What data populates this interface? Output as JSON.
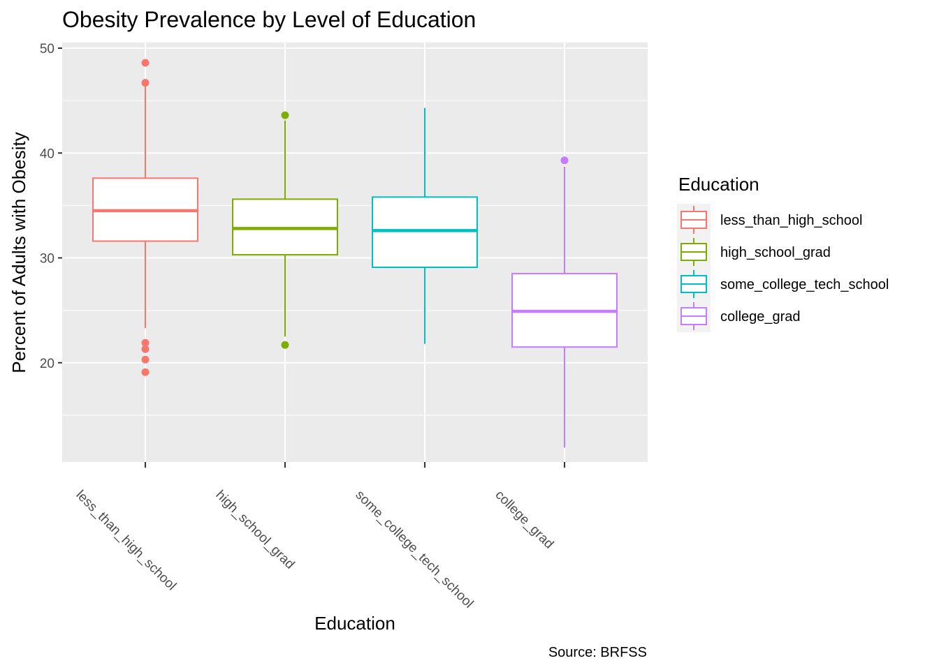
{
  "chart_data": {
    "type": "boxplot",
    "title": "Obesity Prevalence by Level of Education",
    "xlabel": "Education",
    "ylabel": "Percent of Adults with Obesity",
    "caption": "Source: BRFSS",
    "ylim": [
      10,
      50
    ],
    "y_ticks": [
      20,
      30,
      40,
      50
    ],
    "grid": true,
    "legend": {
      "title": "Education",
      "placement": "right"
    },
    "categories": [
      "less_than_high_school",
      "high_school_grad",
      "some_college_tech_school",
      "college_grad"
    ],
    "series": [
      {
        "name": "less_than_high_school",
        "color": "#F8766D",
        "whisker_low": 23.3,
        "q1": 31.6,
        "median": 34.5,
        "q3": 37.6,
        "whisker_high": 46.7,
        "outliers": [
          48.6,
          46.7,
          21.9,
          21.3,
          20.3,
          19.1
        ]
      },
      {
        "name": "high_school_grad",
        "color": "#7CAE00",
        "whisker_low": 22.5,
        "q1": 30.3,
        "median": 32.8,
        "q3": 35.6,
        "whisker_high": 43.1,
        "outliers": [
          43.6,
          21.7
        ]
      },
      {
        "name": "some_college_tech_school",
        "color": "#00BFC4",
        "whisker_low": 21.8,
        "q1": 29.1,
        "median": 32.6,
        "q3": 35.8,
        "whisker_high": 44.3,
        "outliers": []
      },
      {
        "name": "college_grad",
        "color": "#C77CFF",
        "whisker_low": 11.9,
        "q1": 21.5,
        "median": 24.9,
        "q3": 28.5,
        "whisker_high": 38.7,
        "outliers": [
          39.3
        ]
      }
    ]
  }
}
